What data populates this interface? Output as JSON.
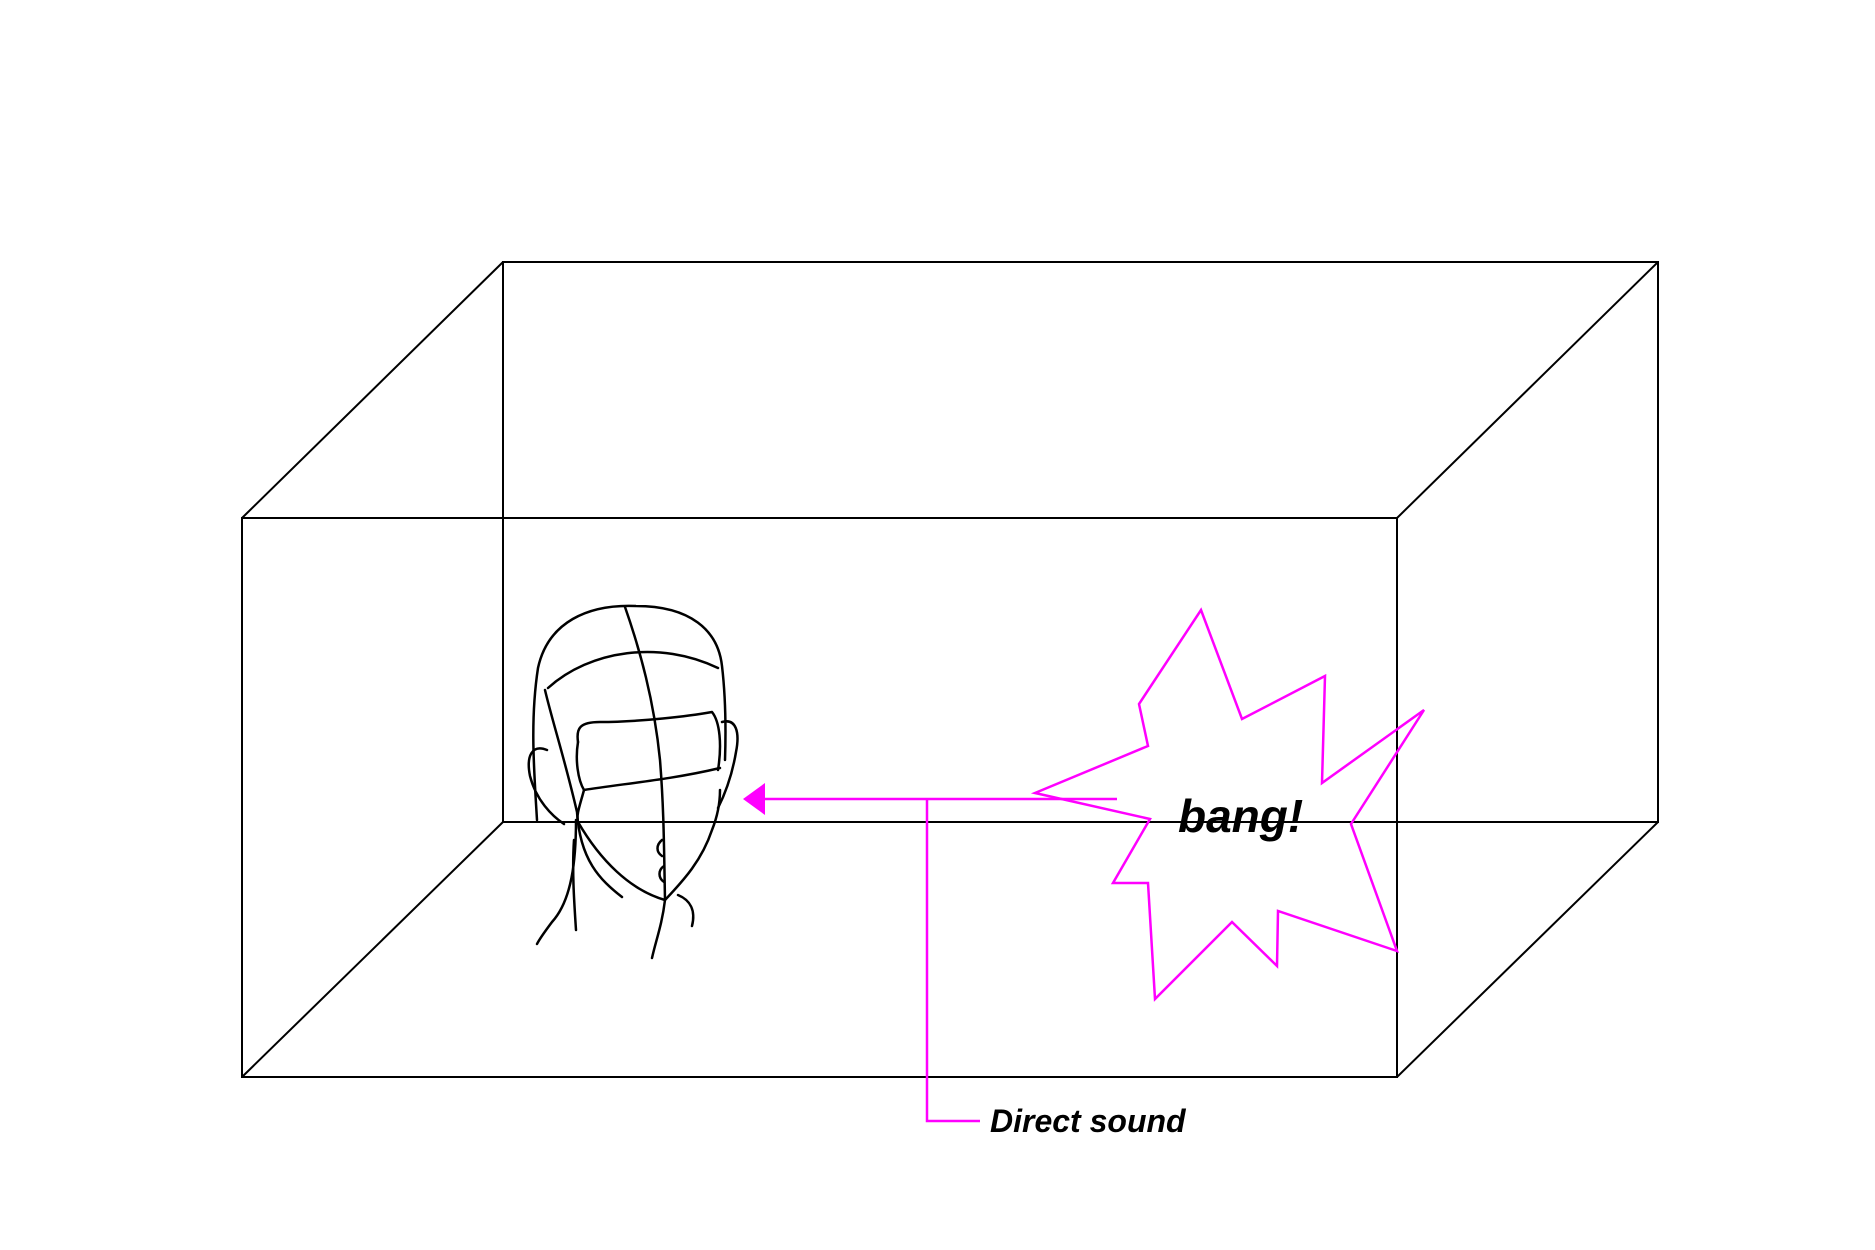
{
  "burst_label": "bang!",
  "callout_label": "Direct sound",
  "colors": {
    "accent": "#ff00ff",
    "line": "#000000",
    "background": "#ffffff"
  },
  "icons": {
    "listener": "human-head-sketch-icon",
    "source": "explosion-burst-icon"
  }
}
